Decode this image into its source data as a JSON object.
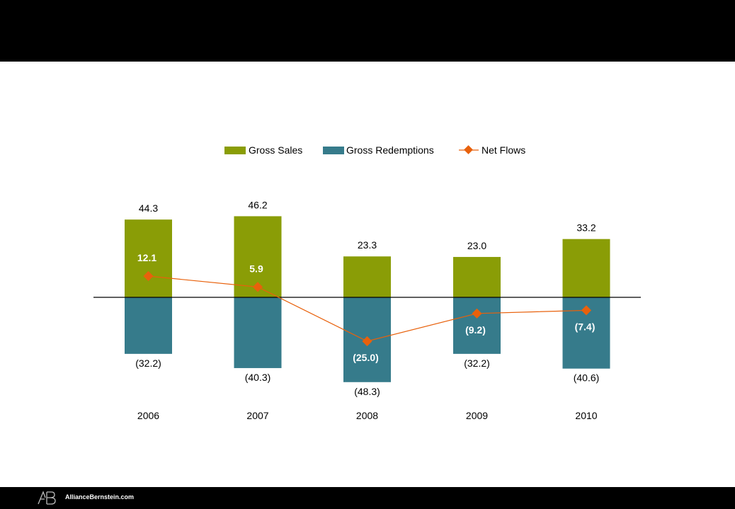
{
  "footer": {
    "site": "AllianceBernstein.com"
  },
  "colors": {
    "gross_sales": "#8a9d06",
    "gross_redemptions": "#367b8b",
    "net_flows": "#e8610c",
    "axis": "#000000"
  },
  "chart_data": {
    "type": "bar",
    "categories": [
      "2006",
      "2007",
      "2008",
      "2009",
      "2010"
    ],
    "series": [
      {
        "name": "Gross Sales",
        "kind": "bar",
        "values": [
          44.3,
          46.2,
          23.3,
          23.0,
          33.2
        ],
        "labels": [
          "44.3",
          "46.2",
          "23.3",
          "23.0",
          "33.2"
        ]
      },
      {
        "name": "Gross Redemptions",
        "kind": "bar",
        "values": [
          -32.2,
          -40.3,
          -48.3,
          -32.2,
          -40.6
        ],
        "labels": [
          "(32.2)",
          "(40.3)",
          "(48.3)",
          "(32.2)",
          "(40.6)"
        ]
      },
      {
        "name": "Net Flows",
        "kind": "line",
        "values": [
          12.1,
          5.9,
          -25.0,
          -9.2,
          -7.4
        ],
        "labels": [
          "12.1",
          "5.9",
          "(25.0)",
          "(9.2)",
          "(7.4)"
        ]
      }
    ],
    "legend": [
      "Gross Sales",
      "Gross Redemptions",
      "Net Flows"
    ],
    "legend_position": "top-center",
    "title": "",
    "xlabel": "",
    "ylabel": "",
    "ylim": [
      -50,
      50
    ],
    "grid": false
  }
}
